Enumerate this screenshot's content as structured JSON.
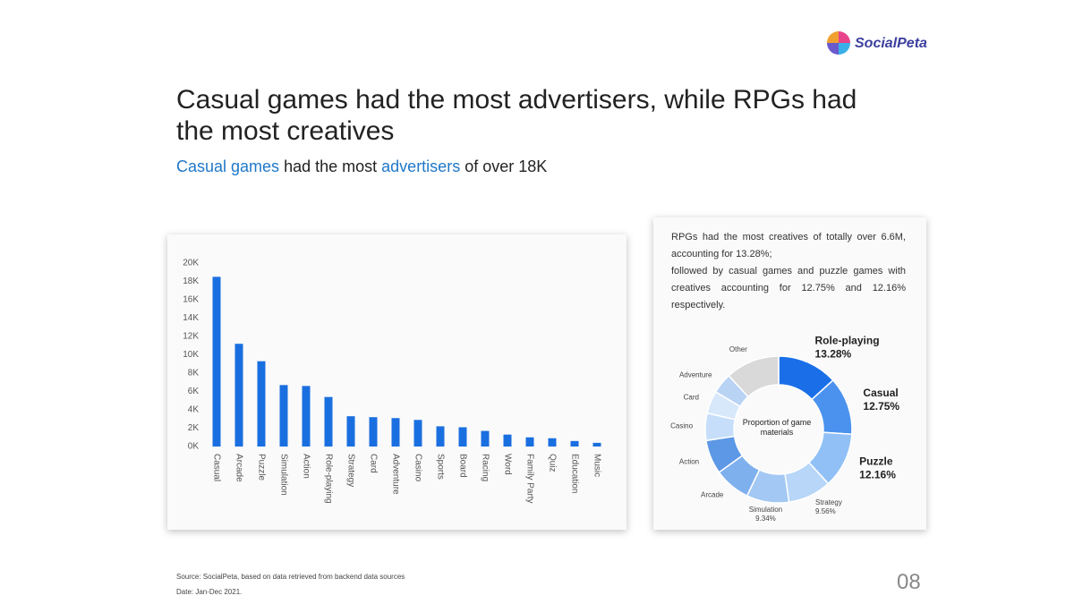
{
  "logo": "SocialPeta",
  "title": "Casual games had the most advertisers, while RPGs had the most creatives",
  "subtitle_parts": [
    "Casual games",
    "had the most",
    "advertisers",
    "of over 18K"
  ],
  "footer": {
    "source": "Source: SocialPeta, based on data retrieved from backend data sources",
    "date": "Date: Jan-Dec 2021.",
    "page": "08"
  },
  "chart_data": [
    {
      "type": "bar",
      "color": "#1a6fe0",
      "categories": [
        "Casual",
        "Arcade",
        "Puzzle",
        "Simulation",
        "Action",
        "Role-playing",
        "Strategy",
        "Card",
        "Adventure",
        "Casino",
        "Sports",
        "Board",
        "Racing",
        "Word",
        "Family Party",
        "Quiz",
        "Education",
        "Music"
      ],
      "values": [
        18500,
        11200,
        9300,
        6700,
        6600,
        5400,
        3300,
        3200,
        3100,
        2900,
        2200,
        2100,
        1700,
        1300,
        1000,
        900,
        600,
        400
      ],
      "ylim": [
        0,
        20000
      ],
      "yticks": [
        {
          "value": 0,
          "label": "0K"
        },
        {
          "value": 2000,
          "label": "2K"
        },
        {
          "value": 4000,
          "label": "4K"
        },
        {
          "value": 6000,
          "label": "6K"
        },
        {
          "value": 8000,
          "label": "8K"
        },
        {
          "value": 10000,
          "label": "10K"
        },
        {
          "value": 12000,
          "label": "12K"
        },
        {
          "value": 14000,
          "label": "14K"
        },
        {
          "value": 16000,
          "label": "16K"
        },
        {
          "value": 18000,
          "label": "18K"
        },
        {
          "value": 20000,
          "label": "20K"
        }
      ]
    },
    {
      "type": "pie",
      "annotation": [
        "RPGs had the most creatives of totally over 6.6M, accounting for 13.28%;",
        "followed by casual games and puzzle games with creatives accounting for 12.75% and 12.16% respectively."
      ],
      "center_label": "Proportion of game materials",
      "categories": [
        "Role-playing",
        "Casual",
        "Puzzle",
        "Strategy",
        "Simulation",
        "Arcade",
        "Action",
        "Casino",
        "Card",
        "Adventure",
        "Other"
      ],
      "values": [
        13.28,
        12.75,
        12.16,
        9.56,
        9.34,
        8,
        7.5,
        6,
        5,
        4.5,
        11.91
      ],
      "value_labels": [
        "13.28%",
        "12.75%",
        "12.16%",
        "9.56%",
        "9.34%",
        null,
        null,
        null,
        null,
        null,
        null
      ],
      "colors": [
        "#1a6fe8",
        "#4a92ee",
        "#90c0f5",
        "#b7d6f8",
        "#a3c8f3",
        "#7fb0ee",
        "#5c98e5",
        "#c6def9",
        "#d8e8fb",
        "#b9d3f5",
        "#d9d9d9"
      ]
    }
  ]
}
